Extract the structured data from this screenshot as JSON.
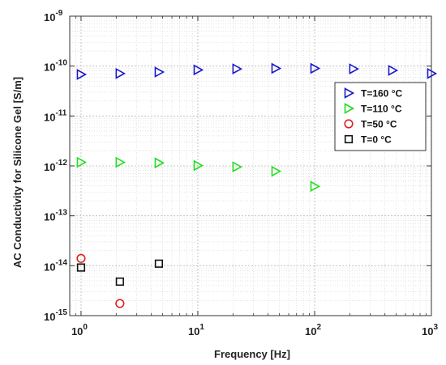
{
  "chart_data": {
    "type": "scatter",
    "title": "",
    "xlabel": "Frequency [Hz]",
    "ylabel": "AC Conductivity for Silicone Gel [S/m]",
    "x_scale": "log",
    "y_scale": "log",
    "xlim": [
      0.8,
      1000
    ],
    "ylim": [
      1e-15,
      1e-09
    ],
    "grid": true,
    "legend_position": "right",
    "x_ticks": [
      {
        "value": 1,
        "base": "10",
        "exp": "0"
      },
      {
        "value": 10,
        "base": "10",
        "exp": "1"
      },
      {
        "value": 100,
        "base": "10",
        "exp": "2"
      },
      {
        "value": 1000,
        "base": "10",
        "exp": "3"
      }
    ],
    "y_ticks": [
      {
        "value": 1e-15,
        "base": "10",
        "exp": "-15"
      },
      {
        "value": 1e-14,
        "base": "10",
        "exp": "-14"
      },
      {
        "value": 1e-13,
        "base": "10",
        "exp": "-13"
      },
      {
        "value": 1e-12,
        "base": "10",
        "exp": "-12"
      },
      {
        "value": 1e-11,
        "base": "10",
        "exp": "-11"
      },
      {
        "value": 1e-10,
        "base": "10",
        "exp": "-10"
      },
      {
        "value": 1e-09,
        "base": "10",
        "exp": "-9"
      }
    ],
    "series": [
      {
        "name": "T=160 °C",
        "marker": "triangle-right",
        "color": "#1a1acc",
        "points": [
          {
            "x": 1,
            "y": 6.8e-11
          },
          {
            "x": 2.15,
            "y": 7.1e-11
          },
          {
            "x": 4.64,
            "y": 7.6e-11
          },
          {
            "x": 10,
            "y": 8.4e-11
          },
          {
            "x": 21.5,
            "y": 8.8e-11
          },
          {
            "x": 46.4,
            "y": 9e-11
          },
          {
            "x": 100,
            "y": 9e-11
          },
          {
            "x": 215,
            "y": 8.8e-11
          },
          {
            "x": 464,
            "y": 8.2e-11
          },
          {
            "x": 1000,
            "y": 7.1e-11
          }
        ]
      },
      {
        "name": "T=110 °C",
        "marker": "triangle-right",
        "color": "#22dd22",
        "points": [
          {
            "x": 1,
            "y": 1.18e-12
          },
          {
            "x": 2.15,
            "y": 1.18e-12
          },
          {
            "x": 4.64,
            "y": 1.15e-12
          },
          {
            "x": 10,
            "y": 1.02e-12
          },
          {
            "x": 21.5,
            "y": 9.6e-13
          },
          {
            "x": 46.4,
            "y": 7.8e-13
          },
          {
            "x": 100,
            "y": 3.9e-13
          }
        ]
      },
      {
        "name": "T=50 °C",
        "marker": "circle",
        "color": "#e02020",
        "points": [
          {
            "x": 1,
            "y": 1.4e-14
          },
          {
            "x": 2.15,
            "y": 1.75e-15
          }
        ]
      },
      {
        "name": "T=0 °C",
        "marker": "square",
        "color": "#111111",
        "points": [
          {
            "x": 1,
            "y": 9.2e-15
          },
          {
            "x": 2.15,
            "y": 4.8e-15
          },
          {
            "x": 4.64,
            "y": 1.1e-14
          }
        ]
      }
    ]
  }
}
